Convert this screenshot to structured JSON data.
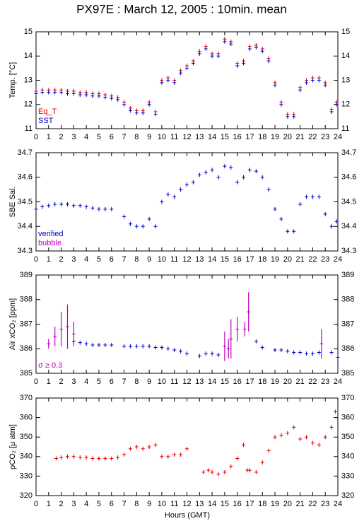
{
  "chart_data": [
    {
      "type": "scatter",
      "title": "PX97E : March 12, 2005 : 10min. mean",
      "ylabel": "Temp. [°C]",
      "xlim": [
        0,
        24
      ],
      "xticks": [
        0,
        1,
        2,
        3,
        4,
        5,
        6,
        7,
        8,
        9,
        10,
        11,
        12,
        13,
        14,
        15,
        16,
        17,
        18,
        19,
        20,
        21,
        22,
        23,
        24
      ],
      "ylim": [
        11,
        15
      ],
      "yticks": [
        11,
        12,
        13,
        14,
        15
      ],
      "legend": "lower left",
      "series": [
        {
          "name": "Eq_T",
          "color": "#e00000",
          "x": [
            0,
            0.5,
            1,
            1.5,
            2,
            2.5,
            3,
            3.5,
            4,
            4.5,
            5,
            5.5,
            6,
            6.5,
            7,
            7.5,
            8,
            8.5,
            9,
            9.5,
            10,
            10.5,
            11,
            11.5,
            12,
            12.5,
            13,
            13.5,
            14,
            14.5,
            15,
            15.5,
            16,
            16.5,
            17,
            17.5,
            18,
            18.5,
            19,
            19.5,
            20,
            20.5,
            21,
            21.5,
            22,
            22.5,
            23,
            23.5,
            23.9
          ],
          "values": [
            12.55,
            12.6,
            12.6,
            12.6,
            12.6,
            12.55,
            12.55,
            12.5,
            12.5,
            12.45,
            12.45,
            12.4,
            12.35,
            12.3,
            12.1,
            11.85,
            11.75,
            11.75,
            12.1,
            11.7,
            13.0,
            13.1,
            13.0,
            13.4,
            13.6,
            13.8,
            14.2,
            14.4,
            14.1,
            14.1,
            14.7,
            14.6,
            13.7,
            13.8,
            14.4,
            14.45,
            14.3,
            13.9,
            12.9,
            12.1,
            11.6,
            11.6,
            12.7,
            13.0,
            13.1,
            13.1,
            12.9,
            11.8,
            12.1
          ]
        },
        {
          "name": "SST",
          "color": "#0000c8",
          "x": [
            0,
            0.5,
            1,
            1.5,
            2,
            2.5,
            3,
            3.5,
            4,
            4.5,
            5,
            5.5,
            6,
            6.5,
            7,
            7.5,
            8,
            8.5,
            9,
            9.5,
            10,
            10.5,
            11,
            11.5,
            12,
            12.5,
            13,
            13.5,
            14,
            14.5,
            15,
            15.5,
            16,
            16.5,
            17,
            17.5,
            18,
            18.5,
            19,
            19.5,
            20,
            20.5,
            21,
            21.5,
            22,
            22.5,
            23,
            23.5,
            23.9
          ],
          "values": [
            12.45,
            12.5,
            12.5,
            12.5,
            12.5,
            12.45,
            12.45,
            12.4,
            12.4,
            12.35,
            12.35,
            12.3,
            12.25,
            12.2,
            12.0,
            11.75,
            11.65,
            11.65,
            12.0,
            11.6,
            12.9,
            13.0,
            12.9,
            13.3,
            13.5,
            13.7,
            14.1,
            14.3,
            14.0,
            14.0,
            14.6,
            14.5,
            13.6,
            13.7,
            14.3,
            14.35,
            14.2,
            13.8,
            12.8,
            12.0,
            11.5,
            11.5,
            12.6,
            12.9,
            13.0,
            13.0,
            12.8,
            11.7,
            12.0
          ]
        }
      ]
    },
    {
      "type": "scatter",
      "ylabel": "SBE Sal.",
      "xlim": [
        0,
        24
      ],
      "xticks": [
        0,
        1,
        2,
        3,
        4,
        5,
        6,
        7,
        8,
        9,
        10,
        11,
        12,
        13,
        14,
        15,
        16,
        17,
        18,
        19,
        20,
        21,
        22,
        23,
        24
      ],
      "ylim": [
        34.3,
        34.7
      ],
      "yticks": [
        34.3,
        34.4,
        34.5,
        34.6,
        34.7
      ],
      "legend": "lower left",
      "series": [
        {
          "name": "verified",
          "color": "#0000c8",
          "x": [
            0,
            0.5,
            1,
            1.5,
            2,
            2.5,
            3,
            3.5,
            4,
            4.5,
            5,
            5.5,
            6,
            7,
            7.5,
            8,
            8.5,
            9,
            9.5,
            10,
            10.5,
            11,
            11.5,
            12,
            12.5,
            13,
            13.5,
            14,
            14.5,
            15,
            15.5,
            16,
            16.5,
            17,
            17.5,
            18,
            18.5,
            19,
            19.5,
            20,
            20.5,
            21,
            21.5,
            22,
            22.5,
            23,
            23.5,
            23.9
          ],
          "values": [
            34.47,
            34.48,
            34.485,
            34.49,
            34.49,
            34.49,
            34.485,
            34.485,
            34.48,
            34.475,
            34.47,
            34.47,
            34.47,
            34.44,
            34.41,
            34.4,
            34.4,
            34.43,
            34.4,
            34.5,
            34.53,
            34.52,
            34.55,
            34.57,
            34.58,
            34.61,
            34.62,
            34.63,
            34.6,
            34.645,
            34.64,
            34.58,
            34.6,
            34.63,
            34.625,
            34.6,
            34.55,
            34.47,
            34.43,
            34.38,
            34.38,
            34.49,
            34.52,
            34.52,
            34.52,
            34.45,
            34.4,
            34.42
          ]
        },
        {
          "name": "bubble",
          "color": "#c000c0",
          "x": [],
          "values": []
        }
      ]
    },
    {
      "type": "scatter",
      "ylabel": "Air xCO₂ [ppm]",
      "xlim": [
        0,
        24
      ],
      "xticks": [
        0,
        1,
        2,
        3,
        4,
        5,
        6,
        7,
        8,
        9,
        10,
        11,
        12,
        13,
        14,
        15,
        16,
        17,
        18,
        19,
        20,
        21,
        22,
        23,
        24
      ],
      "ylim": [
        385,
        389
      ],
      "yticks": [
        385,
        386,
        387,
        388,
        389
      ],
      "legend": "lower left",
      "series": [
        {
          "color": "#0000c8",
          "x": [
            3,
            3.5,
            4,
            4.5,
            5,
            5.5,
            6,
            7,
            7.5,
            8,
            8.5,
            9,
            9.5,
            10,
            10.5,
            11,
            11.5,
            12,
            13,
            13.5,
            14,
            14.5,
            17.5,
            18,
            19,
            19.5,
            20,
            20.5,
            21,
            21.5,
            22,
            22.5,
            23.5,
            24
          ],
          "values": [
            386.3,
            386.25,
            386.2,
            386.15,
            386.15,
            386.15,
            386.15,
            386.1,
            386.1,
            386.1,
            386.1,
            386.1,
            386.05,
            386.05,
            386.0,
            385.95,
            385.9,
            385.8,
            385.7,
            385.8,
            385.8,
            385.75,
            386.3,
            386.05,
            385.95,
            385.95,
            385.9,
            385.85,
            385.85,
            385.8,
            385.8,
            385.85,
            385.85,
            385.65
          ]
        },
        {
          "name": "σ ≥ 0.3",
          "color": "#c000c0",
          "x": [
            1,
            1.5,
            2,
            2.5,
            3,
            15,
            15.3,
            15.5,
            16,
            16.6,
            16.9,
            22.7
          ],
          "values": [
            386.2,
            386.5,
            386.8,
            386.9,
            386.6,
            386.1,
            386.0,
            386.4,
            386.8,
            386.8,
            387.5,
            386.2
          ],
          "errors": [
            0.2,
            0.4,
            0.7,
            0.9,
            0.5,
            0.6,
            0.4,
            0.8,
            0.5,
            0.3,
            0.8,
            0.6
          ]
        }
      ]
    },
    {
      "type": "scatter",
      "ylabel": "ρCO₂ [μ atm]",
      "xlabel": "Hours (GMT)",
      "xlim": [
        0,
        24
      ],
      "xticks": [
        0,
        1,
        2,
        3,
        4,
        5,
        6,
        7,
        8,
        9,
        10,
        11,
        12,
        13,
        14,
        15,
        16,
        17,
        18,
        19,
        20,
        21,
        22,
        23,
        24
      ],
      "ylim": [
        320,
        370
      ],
      "yticks": [
        320,
        330,
        340,
        350,
        360,
        370
      ],
      "series": [
        {
          "color": "#e00000",
          "x": [
            1.6,
            2,
            2.5,
            3,
            3.5,
            4,
            4.5,
            5,
            5.5,
            6,
            6.5,
            7,
            7.5,
            8,
            8.5,
            9,
            9.5,
            10,
            10.5,
            11,
            11.5,
            12,
            13.3,
            13.7,
            14,
            14.5,
            15,
            15.5,
            16,
            16.5,
            16.8,
            17,
            17.5,
            18,
            18.5,
            19,
            19.5,
            20,
            20.5,
            21,
            21.5,
            22,
            22.5,
            23,
            23.5,
            23.8
          ],
          "values": [
            339,
            339.5,
            340,
            340,
            339.5,
            339.5,
            339,
            339,
            339,
            339,
            339.5,
            341,
            344,
            345,
            344,
            345,
            346,
            340,
            340,
            341,
            341,
            344,
            332,
            333,
            332,
            331,
            332,
            335,
            339,
            346,
            333,
            333,
            332,
            337,
            343,
            350,
            351,
            352,
            355,
            349,
            350,
            347,
            346,
            350,
            355,
            363
          ]
        }
      ]
    }
  ]
}
